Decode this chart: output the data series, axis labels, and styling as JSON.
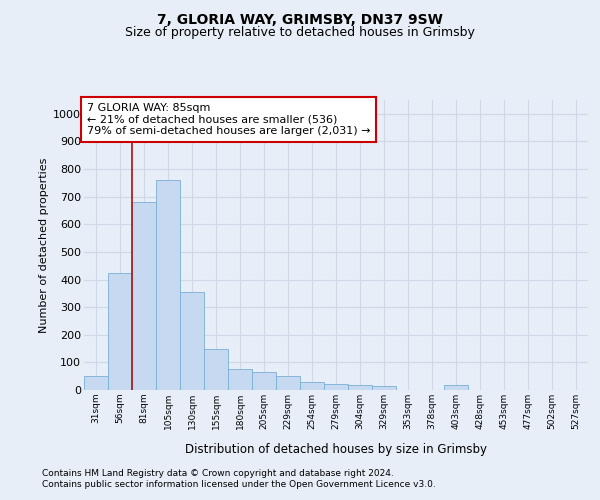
{
  "title1": "7, GLORIA WAY, GRIMSBY, DN37 9SW",
  "title2": "Size of property relative to detached houses in Grimsby",
  "xlabel": "Distribution of detached houses by size in Grimsby",
  "ylabel": "Number of detached properties",
  "categories": [
    "31sqm",
    "56sqm",
    "81sqm",
    "105sqm",
    "130sqm",
    "155sqm",
    "180sqm",
    "205sqm",
    "229sqm",
    "254sqm",
    "279sqm",
    "304sqm",
    "329sqm",
    "353sqm",
    "378sqm",
    "403sqm",
    "428sqm",
    "453sqm",
    "477sqm",
    "502sqm",
    "527sqm"
  ],
  "values": [
    50,
    425,
    680,
    760,
    355,
    148,
    75,
    65,
    50,
    30,
    20,
    18,
    15,
    0,
    0,
    18,
    0,
    0,
    0,
    0,
    0
  ],
  "bar_color": "#c6d9f0",
  "bar_edge_color": "#7aafd4",
  "vline_index": 2,
  "vline_color": "#aa1111",
  "annotation_line1": "7 GLORIA WAY: 85sqm",
  "annotation_line2": "← 21% of detached houses are smaller (536)",
  "annotation_line3": "79% of semi-detached houses are larger (2,031) →",
  "ylim": [
    0,
    1050
  ],
  "yticks": [
    0,
    100,
    200,
    300,
    400,
    500,
    600,
    700,
    800,
    900,
    1000
  ],
  "bg_color": "#e8eef8",
  "grid_color": "#d0d8e8",
  "footer1": "Contains HM Land Registry data © Crown copyright and database right 2024.",
  "footer2": "Contains public sector information licensed under the Open Government Licence v3.0."
}
